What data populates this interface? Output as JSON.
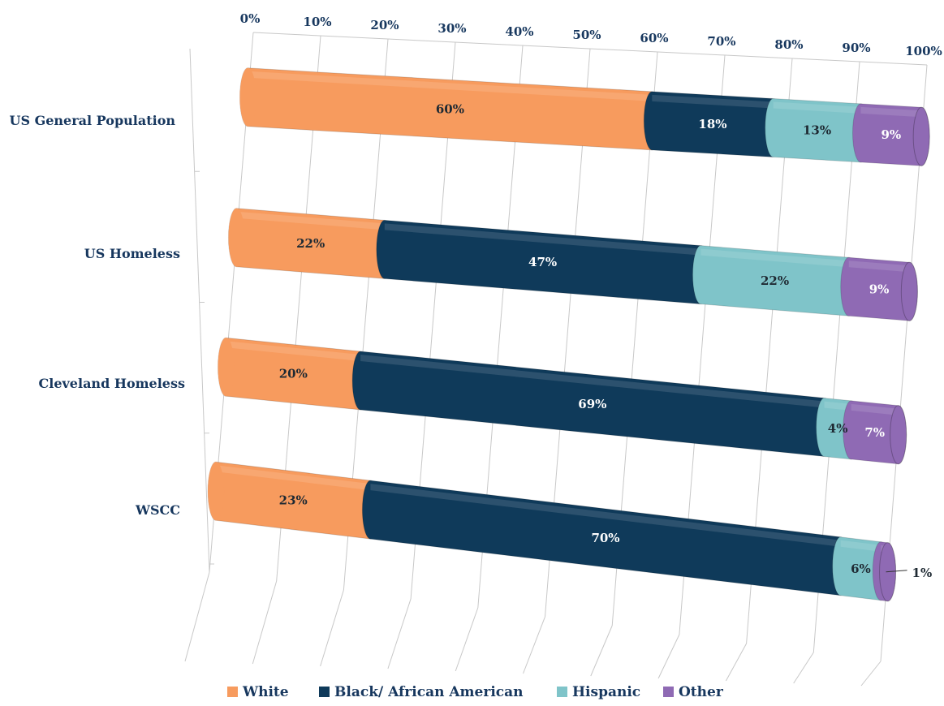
{
  "chart_data": {
    "type": "bar",
    "orientation": "horizontal",
    "stacked": "percent",
    "style": "3d-cylinder",
    "categories": [
      "US General Population",
      "US Homeless",
      "Cleveland Homeless",
      "WSCC"
    ],
    "series": [
      {
        "name": "White",
        "values": [
          60,
          22,
          20,
          23
        ],
        "labels": [
          "60%",
          "22%",
          "20%",
          "23%"
        ],
        "color": "#f79b5e"
      },
      {
        "name": "Black/ African American",
        "values": [
          18,
          47,
          69,
          70
        ],
        "labels": [
          "18%",
          "47%",
          "69%",
          "70%"
        ],
        "color": "#0f3a5a"
      },
      {
        "name": "Hispanic",
        "values": [
          13,
          22,
          4,
          6
        ],
        "labels": [
          "13%",
          "22%",
          "4%",
          "6%"
        ],
        "color": "#7fc4c9"
      },
      {
        "name": "Other",
        "values": [
          9,
          9,
          7,
          1
        ],
        "labels": [
          "9%",
          "9%",
          "7%",
          "1%"
        ],
        "color": "#8f6ab4"
      }
    ],
    "x_ticks": [
      "0%",
      "10%",
      "20%",
      "30%",
      "40%",
      "50%",
      "60%",
      "70%",
      "80%",
      "90%",
      "100%"
    ],
    "xlim": [
      0,
      100
    ],
    "grid": true,
    "legend_position": "bottom",
    "title": "",
    "xlabel": "",
    "ylabel": ""
  }
}
